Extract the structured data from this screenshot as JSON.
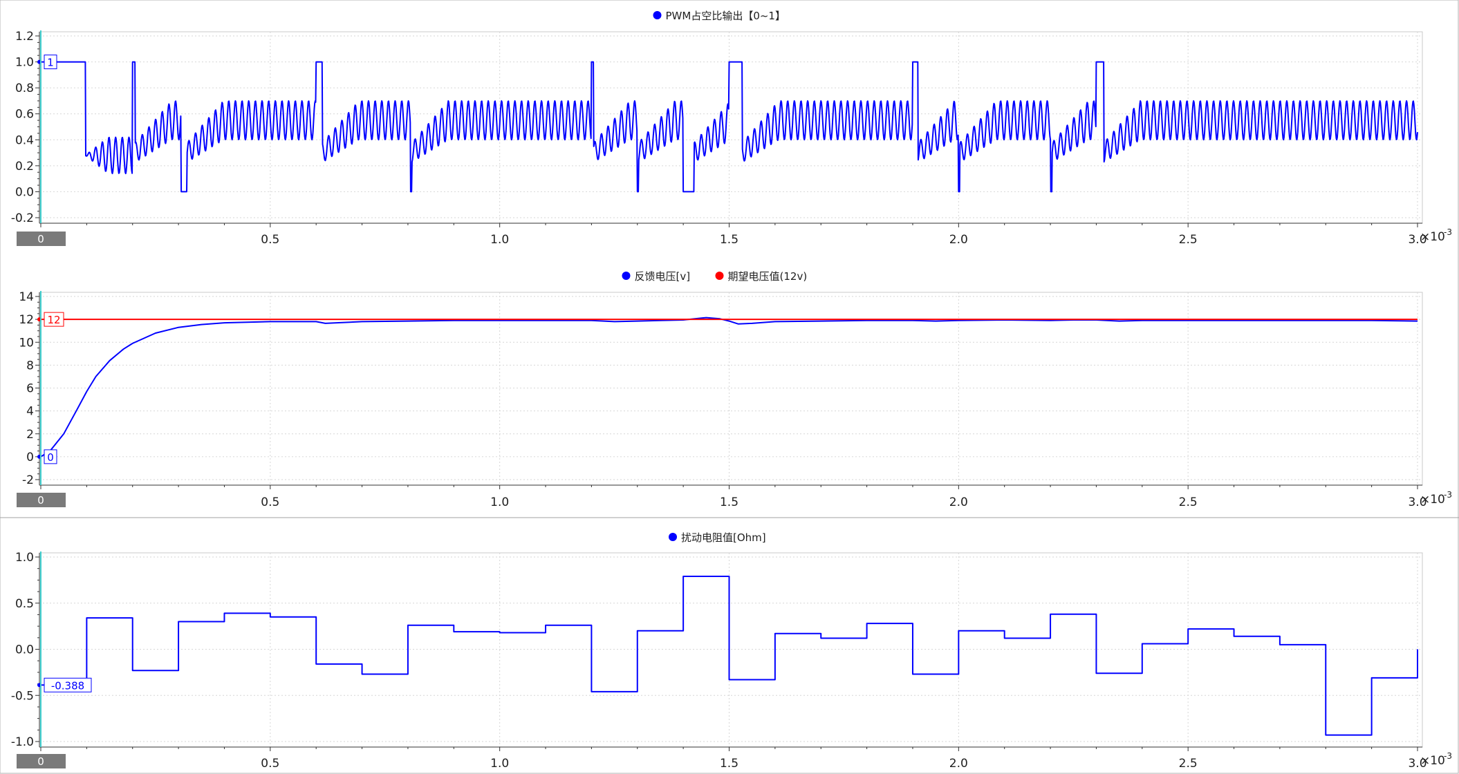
{
  "chart_data": [
    {
      "type": "line",
      "title": "",
      "ylim": [
        -0.2,
        1.2
      ],
      "xlim": [
        0,
        3.0
      ],
      "x_exponent_label": "×10",
      "x_exponent_power": "-3",
      "x_ticks": [
        "0.5",
        "1.0",
        "1.5",
        "2.0",
        "2.5",
        "3.0"
      ],
      "x_tick_values": [
        0.5,
        1.0,
        1.5,
        2.0,
        2.5,
        3.0
      ],
      "y_ticks": [
        "-0.2",
        "0.0",
        "0.2",
        "0.4",
        "0.6",
        "0.8",
        "1.0",
        "1.2"
      ],
      "y_tick_values": [
        -0.2,
        0.0,
        0.2,
        0.4,
        0.6,
        0.8,
        1.0,
        1.2
      ],
      "grid": true,
      "legend_position": "top-center",
      "cursor": {
        "x": 0,
        "x_label": "0"
      },
      "series": [
        {
          "name": "PWM占空比输出【0~1】",
          "color": "#0000ff",
          "shape": "pwm_duty",
          "marker_value": "1",
          "saturated_high_windows": [
            [
              0.0,
              0.097
            ],
            [
              0.2,
              0.205
            ],
            [
              0.6,
              0.613
            ],
            [
              1.2,
              1.204
            ],
            [
              1.5,
              1.528
            ],
            [
              1.9,
              1.911
            ],
            [
              2.3,
              2.316
            ]
          ],
          "zero_windows": [
            [
              0.306,
              0.318
            ],
            [
              0.805,
              0.808
            ],
            [
              1.3,
              1.302
            ],
            [
              1.4,
              1.423
            ],
            [
              2.0,
              2.002
            ],
            [
              2.2,
              2.203
            ]
          ],
          "min_level": 0.4,
          "max_level": 0.7
        }
      ]
    },
    {
      "type": "line",
      "title": "",
      "ylim": [
        -2,
        14
      ],
      "xlim": [
        0,
        3.0
      ],
      "x_exponent_label": "×10",
      "x_exponent_power": "-3",
      "x_ticks": [
        "0.5",
        "1.0",
        "1.5",
        "2.0",
        "2.5",
        "3.0"
      ],
      "x_tick_values": [
        0.5,
        1.0,
        1.5,
        2.0,
        2.5,
        3.0
      ],
      "y_ticks": [
        "-2",
        "0",
        "2",
        "4",
        "6",
        "8",
        "10",
        "12",
        "14"
      ],
      "y_tick_values": [
        -2,
        0,
        2,
        4,
        6,
        8,
        10,
        12,
        14
      ],
      "grid": true,
      "legend_position": "top-center",
      "cursor": {
        "x": 0,
        "x_label": "0"
      },
      "series": [
        {
          "name": "反馈电压[v]",
          "color": "#0000ff",
          "marker_value": "0",
          "x": [
            0,
            0.02,
            0.05,
            0.08,
            0.1,
            0.12,
            0.15,
            0.18,
            0.2,
            0.25,
            0.3,
            0.35,
            0.4,
            0.5,
            0.6,
            0.62,
            0.7,
            0.8,
            0.9,
            1.0,
            1.2,
            1.25,
            1.3,
            1.35,
            1.4,
            1.45,
            1.48,
            1.5,
            1.52,
            1.55,
            1.6,
            1.7,
            1.8,
            1.9,
            1.95,
            2.0,
            2.1,
            2.2,
            2.25,
            2.3,
            2.35,
            2.4,
            2.5,
            2.6,
            2.7,
            2.8,
            2.9,
            3.0
          ],
          "y": [
            0,
            0.5,
            2.0,
            4.2,
            5.7,
            7.0,
            8.4,
            9.4,
            9.9,
            10.8,
            11.3,
            11.55,
            11.7,
            11.8,
            11.8,
            11.65,
            11.8,
            11.85,
            11.9,
            11.9,
            11.9,
            11.8,
            11.85,
            11.9,
            11.95,
            12.15,
            12.05,
            11.85,
            11.6,
            11.65,
            11.8,
            11.85,
            11.9,
            11.9,
            11.85,
            11.9,
            11.95,
            11.9,
            11.95,
            11.95,
            11.85,
            11.9,
            11.9,
            11.9,
            11.9,
            11.9,
            11.9,
            11.85
          ]
        },
        {
          "name": "期望电压值(12v)",
          "color": "#ff0000",
          "marker_value": "12",
          "x": [
            0,
            3.0
          ],
          "y": [
            12,
            12
          ]
        }
      ]
    },
    {
      "type": "line",
      "title": "",
      "ylim": [
        -1.0,
        1.0
      ],
      "xlim": [
        0,
        3.0
      ],
      "x_exponent_label": "×10",
      "x_exponent_power": "-3",
      "x_ticks": [
        "0.5",
        "1.0",
        "1.5",
        "2.0",
        "2.5",
        "3.0"
      ],
      "x_tick_values": [
        0.5,
        1.0,
        1.5,
        2.0,
        2.5,
        3.0
      ],
      "y_ticks": [
        "-1.0",
        "-0.5",
        "0.0",
        "0.5",
        "1.0"
      ],
      "y_tick_values": [
        -1.0,
        -0.5,
        0.0,
        0.5,
        1.0
      ],
      "grid": true,
      "legend_position": "top-center",
      "cursor": {
        "x": 0,
        "x_label": "0"
      },
      "series": [
        {
          "name": "扰动电阻值[Ohm]",
          "color": "#0000ff",
          "marker_value": "-0.388",
          "step": true,
          "x": [
            0,
            0.1,
            0.2,
            0.3,
            0.4,
            0.5,
            0.6,
            0.7,
            0.8,
            0.9,
            1.0,
            1.1,
            1.2,
            1.3,
            1.4,
            1.5,
            1.6,
            1.7,
            1.8,
            1.9,
            2.0,
            2.1,
            2.2,
            2.3,
            2.4,
            2.5,
            2.6,
            2.7,
            2.8,
            2.9,
            3.0
          ],
          "y": [
            -0.388,
            0.34,
            -0.23,
            0.3,
            0.39,
            0.35,
            -0.16,
            -0.27,
            0.26,
            0.19,
            0.18,
            0.26,
            -0.46,
            0.2,
            0.79,
            -0.33,
            0.17,
            0.12,
            0.28,
            -0.27,
            0.2,
            0.12,
            0.38,
            -0.26,
            0.06,
            0.22,
            0.14,
            0.05,
            -0.93,
            -0.31,
            0.0
          ]
        }
      ]
    }
  ]
}
